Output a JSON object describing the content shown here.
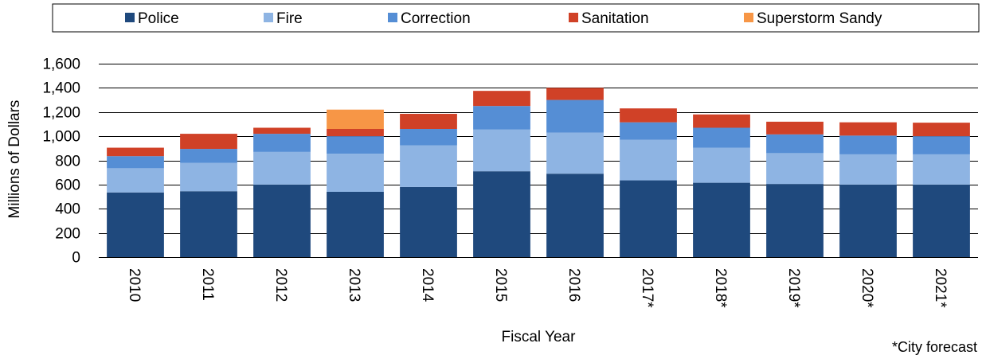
{
  "chart_data": {
    "type": "bar",
    "stacked": true,
    "categories": [
      "2010",
      "2011",
      "2012",
      "2013",
      "2014",
      "2015",
      "2016",
      "2017*",
      "2018*",
      "2019*",
      "2020*",
      "2021*"
    ],
    "series": [
      {
        "name": "Police",
        "color": "#1F497D",
        "values": [
          535,
          545,
          600,
          540,
          580,
          710,
          690,
          635,
          615,
          605,
          600,
          600
        ]
      },
      {
        "name": "Fire",
        "color": "#8EB4E3",
        "values": [
          200,
          235,
          270,
          315,
          345,
          345,
          340,
          335,
          290,
          255,
          250,
          250
        ]
      },
      {
        "name": "Correction",
        "color": "#558ED5",
        "values": [
          100,
          115,
          150,
          145,
          135,
          195,
          270,
          145,
          165,
          155,
          155,
          150
        ]
      },
      {
        "name": "Sanitation",
        "color": "#D04127",
        "values": [
          70,
          125,
          50,
          60,
          125,
          125,
          100,
          115,
          110,
          105,
          110,
          112
        ]
      },
      {
        "name": "Superstorm Sandy",
        "color": "#F79646",
        "values": [
          0,
          0,
          0,
          160,
          0,
          0,
          0,
          0,
          0,
          0,
          0,
          0
        ]
      }
    ],
    "xlabel": "Fiscal Year",
    "ylabel": "Millions of Dollars",
    "ylim": [
      0,
      1600
    ],
    "yticks": [
      "0",
      "200",
      "400",
      "600",
      "800",
      "1,000",
      "1,200",
      "1,400",
      "1,600"
    ],
    "grid": true,
    "legend_position": "top",
    "footnote": "*City forecast"
  }
}
